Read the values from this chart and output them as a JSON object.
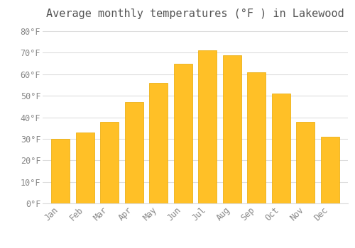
{
  "title": "Average monthly temperatures (°F ) in Lakewood",
  "months": [
    "Jan",
    "Feb",
    "Mar",
    "Apr",
    "May",
    "Jun",
    "Jul",
    "Aug",
    "Sep",
    "Oct",
    "Nov",
    "Dec"
  ],
  "values": [
    30,
    33,
    38,
    47,
    56,
    65,
    71,
    69,
    61,
    51,
    38,
    31
  ],
  "bar_color": "#FFC027",
  "bar_edge_color": "#E8A800",
  "background_color": "#FFFFFF",
  "grid_color": "#DDDDDD",
  "ylim": [
    0,
    83
  ],
  "yticks": [
    0,
    10,
    20,
    30,
    40,
    50,
    60,
    70,
    80
  ],
  "title_fontsize": 11,
  "tick_fontsize": 8.5,
  "font_family": "monospace",
  "tick_color": "#888888",
  "title_color": "#555555"
}
